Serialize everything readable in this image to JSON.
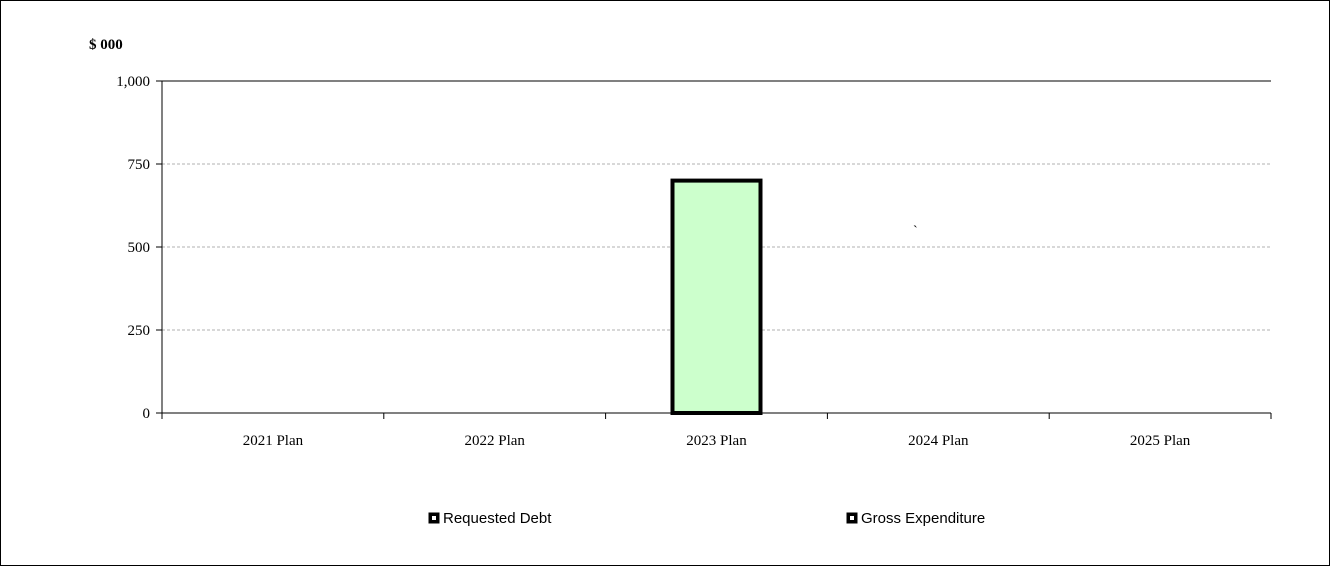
{
  "chart_data": {
    "type": "bar",
    "ylabel": "$ 000",
    "ylim": [
      0,
      1000
    ],
    "yticks": [
      0,
      250,
      500,
      750,
      1000
    ],
    "ytick_labels": [
      "0",
      "250",
      "500",
      "750",
      "1,000"
    ],
    "categories": [
      "2021 Plan",
      "2022 Plan",
      "2023 Plan",
      "2024 Plan",
      "2025 Plan"
    ],
    "series": [
      {
        "name": "Requested Debt",
        "values": [
          0,
          0,
          700,
          0,
          0
        ]
      },
      {
        "name": "Gross Expenditure",
        "values": [
          0,
          0,
          0,
          0,
          0
        ]
      }
    ],
    "grid": true,
    "legend_position": "bottom",
    "annotation": "`",
    "colors": {
      "bar_fill": "#ccffcc",
      "bar_stroke": "#000000",
      "grid": "#b0b0b0",
      "axis": "#000000"
    }
  }
}
